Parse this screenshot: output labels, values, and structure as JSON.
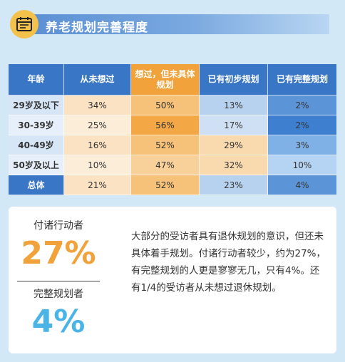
{
  "header": {
    "title": "养老规划完善程度",
    "icon": "calendar-checklist-icon",
    "accent": "#f4c14b",
    "bar_color": "#5a8fd3"
  },
  "chart_data": {
    "type": "table",
    "title": "养老规划完善程度",
    "columns": [
      "年龄",
      "从未想过",
      "想过，但未具体规划",
      "已有初步规划",
      "已有完整规划"
    ],
    "rows": [
      {
        "label": "29岁及以下",
        "values": [
          "34%",
          "50%",
          "13%",
          "2%"
        ]
      },
      {
        "label": "30-39岁",
        "values": [
          "25%",
          "56%",
          "17%",
          "2%"
        ]
      },
      {
        "label": "40-49岁",
        "values": [
          "16%",
          "52%",
          "29%",
          "3%"
        ]
      },
      {
        "label": "50岁及以上",
        "values": [
          "10%",
          "47%",
          "32%",
          "10%"
        ]
      },
      {
        "label": "总体",
        "values": [
          "21%",
          "52%",
          "23%",
          "4%"
        ]
      }
    ],
    "column_colors": [
      "#3a76c6",
      "#f2a23a",
      "#3a76c6",
      "#3a76c6"
    ]
  },
  "summary": {
    "stat1_label": "付诸行动者",
    "stat1_value": "27%",
    "stat2_label": "完整规划者",
    "stat2_value": "4%",
    "paragraph": "大部分的受访者具有退休规划的意识，但还未具体着手规划。付诸行动者较少，约为27%，有完整规划的人更是寥寥无几，只有4%。还有1/4的受访者从未想过退休规划。",
    "stat1_color": "#f2a23a",
    "stat2_color": "#4bb4e6"
  }
}
